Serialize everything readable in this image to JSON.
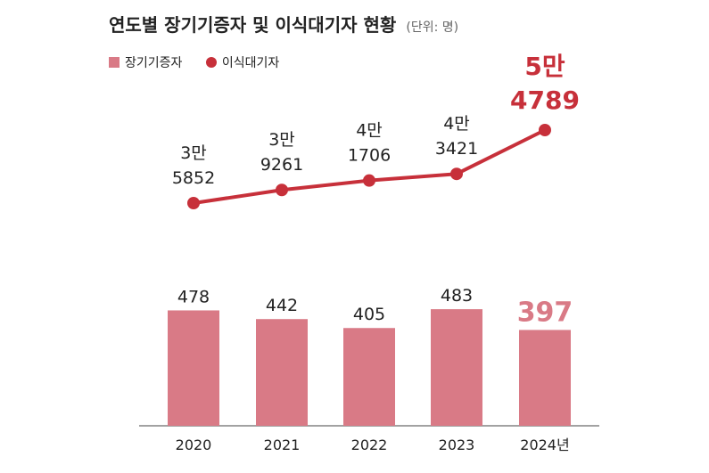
{
  "title": "연도별 장기기증자 및 이식대기자 현황",
  "unit": "(단위: 명)",
  "legend": {
    "bars": "장기기증자",
    "line": "이식대기자"
  },
  "colors": {
    "bar": "#d97a86",
    "bar_highlight_text": "#d97a86",
    "line": "#c7303a",
    "axis": "#444444"
  },
  "chart_data": {
    "type": "bar+line",
    "categories": [
      "2020",
      "2021",
      "2022",
      "2023",
      "2024년"
    ],
    "series": [
      {
        "name": "장기기증자",
        "type": "bar",
        "values": [
          478,
          442,
          405,
          483,
          397
        ],
        "labels": [
          "478",
          "442",
          "405",
          "483",
          "397"
        ]
      },
      {
        "name": "이식대기자",
        "type": "line",
        "values": [
          35852,
          39261,
          41706,
          43421,
          54789
        ],
        "labels": [
          [
            "3만",
            "5852"
          ],
          [
            "3만",
            "9261"
          ],
          [
            "4만",
            "1706"
          ],
          [
            "4만",
            "3421"
          ],
          [
            "5만",
            "4789"
          ]
        ]
      }
    ],
    "highlight_index": 4
  }
}
